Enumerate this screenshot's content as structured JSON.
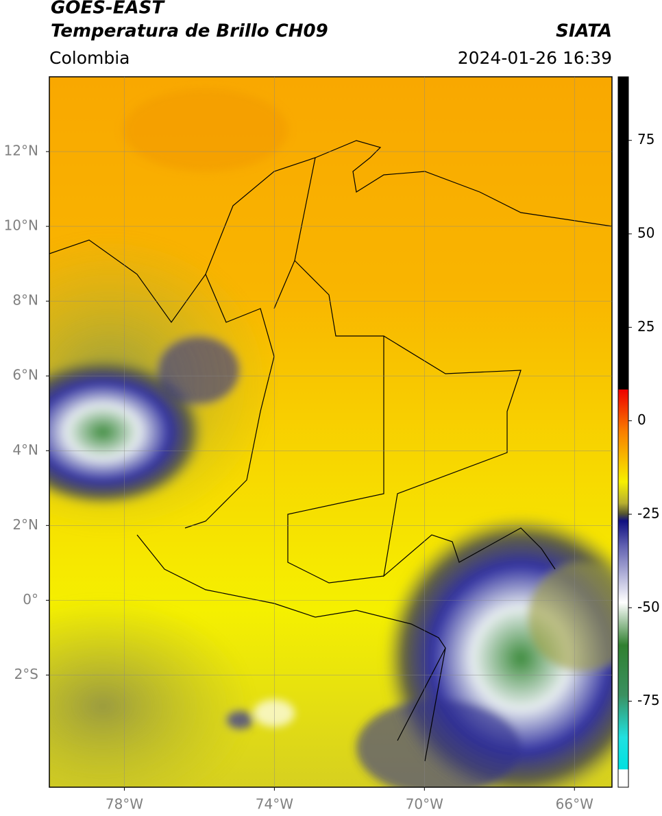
{
  "header": {
    "title": "GOES-EAST",
    "subtitle": "Temperatura de Brillo CH09",
    "source": "SIATA",
    "region": "Colombia",
    "datetime": "2024-01-26 16:39"
  },
  "map": {
    "lonlim": [
      -80,
      -65
    ],
    "latlim": [
      -5,
      14
    ],
    "grid": true,
    "lat_ticks": [
      {
        "value": 12,
        "label": "12°N"
      },
      {
        "value": 10,
        "label": "10°N"
      },
      {
        "value": 8,
        "label": "8°N"
      },
      {
        "value": 6,
        "label": "6°N"
      },
      {
        "value": 4,
        "label": "4°N"
      },
      {
        "value": 2,
        "label": "2°N"
      },
      {
        "value": 0,
        "label": "0°"
      },
      {
        "value": -2,
        "label": "2°S"
      }
    ],
    "lon_ticks": [
      {
        "value": -78,
        "label": "78°W"
      },
      {
        "value": -74,
        "label": "74°W"
      },
      {
        "value": -70,
        "label": "70°W"
      },
      {
        "value": -66,
        "label": "66°W"
      }
    ]
  },
  "colorbar": {
    "lim": [
      -98,
      92
    ],
    "ticks": [
      75,
      50,
      25,
      0,
      -25,
      -50,
      -75
    ]
  }
}
